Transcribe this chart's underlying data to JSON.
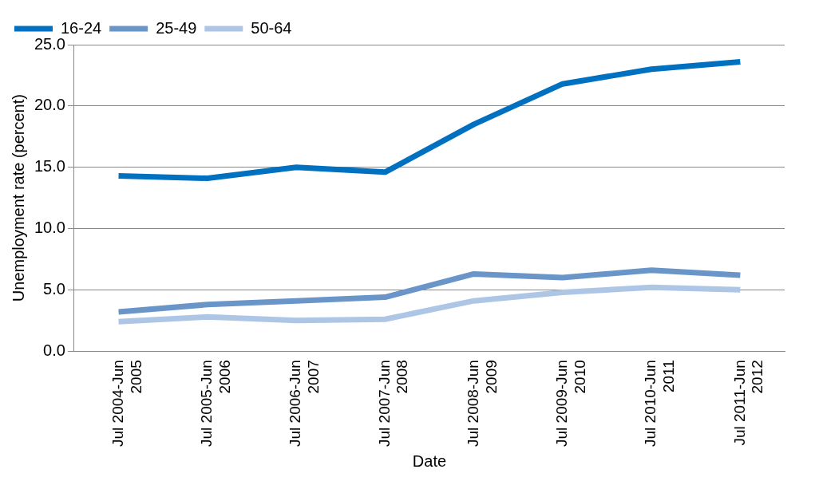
{
  "chart_data": {
    "type": "line",
    "xlabel": "Date",
    "ylabel": "Unemployment rate (percent)",
    "categories": [
      "Jul 2004-Jun 2005",
      "Jul 2005-Jun 2006",
      "Jul 2006-Jun 2007",
      "Jul 2007-Jun 2008",
      "Jul 2008-Jun 2009",
      "Jul 2009-Jun 2010",
      "Jul 2010-Jun 2011",
      "Jul 2011-Jun 2012"
    ],
    "series": [
      {
        "name": "16-24",
        "color": "#0070c0",
        "values": [
          14.3,
          14.1,
          15.0,
          14.6,
          18.5,
          21.8,
          23.0,
          23.6
        ]
      },
      {
        "name": "25-49",
        "color": "#6a95c8",
        "values": [
          3.2,
          3.8,
          4.1,
          4.4,
          6.3,
          6.0,
          6.6,
          6.2
        ]
      },
      {
        "name": "50-64",
        "color": "#aec6e6",
        "values": [
          2.4,
          2.8,
          2.5,
          2.6,
          4.1,
          4.8,
          5.2,
          5.0
        ]
      }
    ],
    "ylim": [
      0,
      25
    ],
    "yticks": [
      {
        "value": 0,
        "label": "0.0"
      },
      {
        "value": 5,
        "label": "5.0"
      },
      {
        "value": 10,
        "label": "10.0"
      },
      {
        "value": 15,
        "label": "15.0"
      },
      {
        "value": 20,
        "label": "20.0"
      },
      {
        "value": 25,
        "label": "25.0"
      }
    ],
    "grid": "y",
    "legend": "top left",
    "marker": "none",
    "line_style": "solid"
  }
}
